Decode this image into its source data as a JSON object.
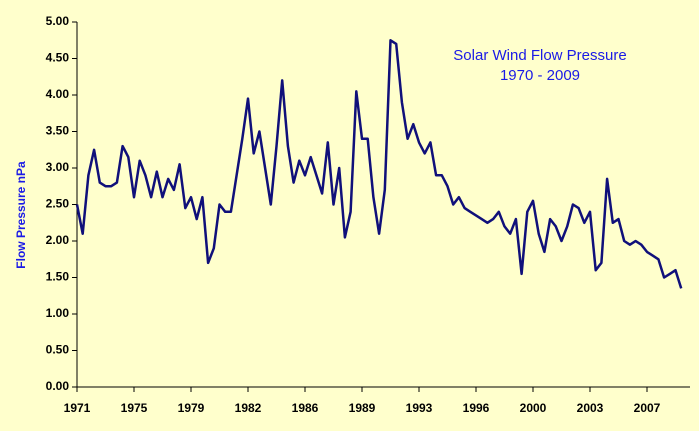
{
  "chart_data": {
    "type": "line",
    "title": "Solar Wind Flow Pressure",
    "subtitle": "1970 - 2009",
    "y_label": "Flow Pressure nPa",
    "categories": [
      "1971",
      null,
      null,
      null,
      null,
      null,
      null,
      null,
      null,
      null,
      "1975",
      null,
      null,
      null,
      null,
      null,
      null,
      null,
      null,
      null,
      "1979",
      null,
      null,
      null,
      null,
      null,
      null,
      null,
      null,
      null,
      "1982",
      null,
      null,
      null,
      null,
      null,
      null,
      null,
      null,
      null,
      "1986",
      null,
      null,
      null,
      null,
      null,
      null,
      null,
      null,
      null,
      "1989",
      null,
      null,
      null,
      null,
      null,
      null,
      null,
      null,
      null,
      "1993",
      null,
      null,
      null,
      null,
      null,
      null,
      null,
      null,
      null,
      "1996",
      null,
      null,
      null,
      null,
      null,
      null,
      null,
      null,
      null,
      "2000",
      null,
      null,
      null,
      null,
      null,
      null,
      null,
      null,
      null,
      "2003",
      null,
      null,
      null,
      null,
      null,
      null,
      null,
      null,
      null,
      "2007",
      null,
      null,
      null,
      null,
      null,
      null
    ],
    "series": [
      {
        "name": "Flow Pressure",
        "color": "#10107a",
        "values": [
          2.5,
          2.1,
          2.9,
          3.25,
          2.8,
          2.75,
          2.75,
          2.8,
          3.3,
          3.15,
          2.6,
          3.1,
          2.9,
          2.6,
          2.95,
          2.6,
          2.85,
          2.7,
          3.05,
          2.45,
          2.6,
          2.3,
          2.6,
          1.7,
          1.9,
          2.5,
          2.4,
          2.4,
          2.9,
          3.4,
          3.95,
          3.2,
          3.5,
          3.0,
          2.5,
          3.3,
          4.2,
          3.3,
          2.8,
          3.1,
          2.9,
          3.15,
          2.9,
          2.65,
          3.35,
          2.5,
          3.0,
          2.05,
          2.4,
          4.05,
          3.4,
          3.4,
          2.6,
          2.1,
          2.7,
          4.75,
          4.7,
          3.9,
          3.4,
          3.6,
          3.35,
          3.2,
          3.35,
          2.9,
          2.9,
          2.75,
          2.5,
          2.6,
          2.45,
          2.4,
          2.35,
          2.3,
          2.25,
          2.3,
          2.4,
          2.2,
          2.1,
          2.3,
          1.55,
          2.4,
          2.55,
          2.1,
          1.85,
          2.3,
          2.2,
          2.0,
          2.2,
          2.5,
          2.45,
          2.25,
          2.4,
          1.6,
          1.7,
          2.85,
          2.25,
          2.3,
          2.0,
          1.95,
          2.0,
          1.95,
          1.85,
          1.8,
          1.75,
          1.5,
          1.55,
          1.6,
          1.35
        ]
      }
    ],
    "ylim": [
      0,
      5
    ],
    "yticks": [
      {
        "value": 0,
        "label": "0.00"
      },
      {
        "value": 0.5,
        "label": "0.50"
      },
      {
        "value": 1,
        "label": "1.00"
      },
      {
        "value": 1.5,
        "label": "1.50"
      },
      {
        "value": 2,
        "label": "2.00"
      },
      {
        "value": 2.5,
        "label": "2.50"
      },
      {
        "value": 3,
        "label": "3.00"
      },
      {
        "value": 3.5,
        "label": "3.50"
      },
      {
        "value": 4,
        "label": "4.00"
      },
      {
        "value": 4.5,
        "label": "4.50"
      },
      {
        "value": 5,
        "label": "5.00"
      }
    ],
    "grid": false
  }
}
